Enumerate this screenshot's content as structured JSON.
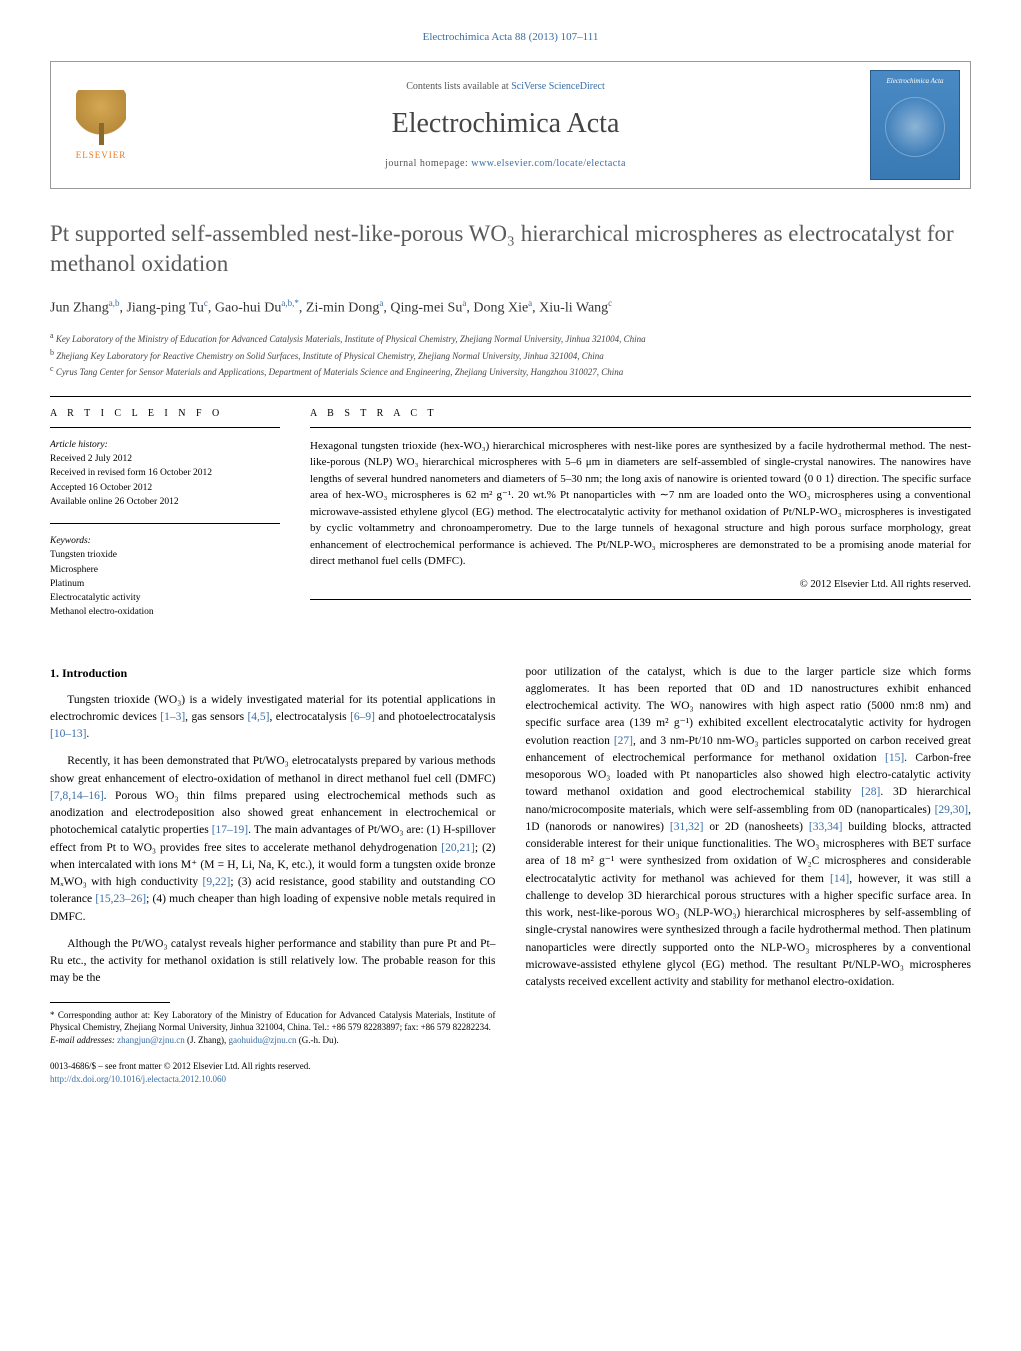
{
  "top_ref": "Electrochimica Acta 88 (2013) 107–111",
  "header": {
    "contents_prefix": "Contents lists available at ",
    "contents_link": "SciVerse ScienceDirect",
    "journal_name": "Electrochimica Acta",
    "homepage_prefix": "journal homepage: ",
    "homepage_url": "www.elsevier.com/locate/electacta",
    "publisher": "ELSEVIER",
    "cover_title": "Electrochimica Acta"
  },
  "title": "Pt supported self-assembled nest-like-porous WO₃ hierarchical microspheres as electrocatalyst for methanol oxidation",
  "authors_html": "Jun Zhang<sup>a,b</sup>, Jiang-ping Tu<sup>c</sup>, Gao-hui Du<sup>a,b,*</sup>, Zi-min Dong<sup>a</sup>, Qing-mei Su<sup>a</sup>, Dong Xie<sup>a</sup>, Xiu-li Wang<sup>c</sup>",
  "affiliations": {
    "a": "Key Laboratory of the Ministry of Education for Advanced Catalysis Materials, Institute of Physical Chemistry, Zhejiang Normal University, Jinhua 321004, China",
    "b": "Zhejiang Key Laboratory for Reactive Chemistry on Solid Surfaces, Institute of Physical Chemistry, Zhejiang Normal University, Jinhua 321004, China",
    "c": "Cyrus Tang Center for Sensor Materials and Applications, Department of Materials Science and Engineering, Zhejiang University, Hangzhou 310027, China"
  },
  "article_info_label": "A R T I C L E   I N F O",
  "abstract_label": "A B S T R A C T",
  "history": {
    "label": "Article history:",
    "received": "Received 2 July 2012",
    "revised": "Received in revised form 16 October 2012",
    "accepted": "Accepted 16 October 2012",
    "online": "Available online 26 October 2012"
  },
  "keywords": {
    "label": "Keywords:",
    "items": [
      "Tungsten trioxide",
      "Microsphere",
      "Platinum",
      "Electrocatalytic activity",
      "Methanol electro-oxidation"
    ]
  },
  "abstract": "Hexagonal tungsten trioxide (hex-WO₃) hierarchical microspheres with nest-like pores are synthesized by a facile hydrothermal method. The nest-like-porous (NLP) WO₃ hierarchical microspheres with 5–6 μm in diameters are self-assembled of single-crystal nanowires. The nanowires have lengths of several hundred nanometers and diameters of 5–30 nm; the long axis of nanowire is oriented toward ⟨0 0 1⟩ direction. The specific surface area of hex-WO₃ microspheres is 62 m² g⁻¹. 20 wt.% Pt nanoparticles with ∼7 nm are loaded onto the WO₃ microspheres using a conventional microwave-assisted ethylene glycol (EG) method. The electrocatalytic activity for methanol oxidation of Pt/NLP-WO₃ microspheres is investigated by cyclic voltammetry and chronoamperometry. Due to the large tunnels of hexagonal structure and high porous surface morphology, great enhancement of electrochemical performance is achieved. The Pt/NLP-WO₃ microspheres are demonstrated to be a promising anode material for direct methanol fuel cells (DMFC).",
  "copyright": "© 2012 Elsevier Ltd. All rights reserved.",
  "intro_heading": "1.  Introduction",
  "col1": {
    "p1_a": "Tungsten trioxide (WO₃) is a widely investigated material for its potential applications in electrochromic devices ",
    "p1_r1": "[1–3]",
    "p1_b": ", gas sensors ",
    "p1_r2": "[4,5]",
    "p1_c": ", electrocatalysis ",
    "p1_r3": "[6–9]",
    "p1_d": " and photoelectrocatalysis ",
    "p1_r4": "[10–13]",
    "p1_e": ".",
    "p2_a": "Recently, it has been demonstrated that Pt/WO₃ eletrocatalysts prepared by various methods show great enhancement of electro-oxidation of methanol in direct methanol fuel cell (DMFC) ",
    "p2_r1": "[7,8,14–16]",
    "p2_b": ". Porous WO₃ thin films prepared using electrochemical methods such as anodization and electrodeposition also showed great enhancement in electrochemical or photochemical catalytic properties ",
    "p2_r2": "[17–19]",
    "p2_c": ". The main advantages of Pt/WO₃ are: (1) H-spillover effect from Pt to WO₃ provides free sites to accelerate methanol dehydrogenation ",
    "p2_r3": "[20,21]",
    "p2_d": "; (2) when intercalated with ions M⁺ (M = H, Li, Na, K, etc.), it would form a tungsten oxide bronze MₓWO₃ with high conductivity ",
    "p2_r4": "[9,22]",
    "p2_e": "; (3) acid resistance, good stability and outstanding CO tolerance ",
    "p2_r5": "[15,23–26]",
    "p2_f": "; (4) much cheaper than high loading of expensive noble metals required in DMFC.",
    "p3": "Although the Pt/WO₃ catalyst reveals higher performance and stability than pure Pt and Pt–Ru etc., the activity for methanol oxidation is still relatively low. The probable reason for this may be the"
  },
  "col2": {
    "p1_a": "poor utilization of the catalyst, which is due to the larger particle size which forms agglomerates. It has been reported that 0D and 1D nanostructures exhibit enhanced electrochemical activity. The WO₃ nanowires with high aspect ratio (5000 nm:8 nm) and specific surface area (139 m² g⁻¹) exhibited excellent electrocatalytic activity for hydrogen evolution reaction ",
    "p1_r1": "[27]",
    "p1_b": ", and 3 nm-Pt/10 nm-WO₃ particles supported on carbon received great enhancement of electrochemical performance for methanol oxidation ",
    "p1_r2": "[15]",
    "p1_c": ". Carbon-free mesoporous WO₃ loaded with Pt nanoparticles also showed high electro-catalytic activity toward methanol oxidation and good electrochemical stability ",
    "p1_r3": "[28]",
    "p1_d": ". 3D hierarchical nano/microcomposite materials, which were self-assembling from 0D (nanoparticales) ",
    "p1_r4": "[29,30]",
    "p1_e": ", 1D (nanorods or nanowires) ",
    "p1_r5": "[31,32]",
    "p1_f": " or 2D (nanosheets) ",
    "p1_r6": "[33,34]",
    "p1_g": " building blocks, attracted considerable interest for their unique functionalities. The WO₃ microspheres with BET surface area of 18 m² g⁻¹ were synthesized from oxidation of W₂C microspheres and considerable electrocatalytic activity for methanol was achieved for them ",
    "p1_r7": "[14]",
    "p1_h": ", however, it was still a challenge to develop 3D hierarchical porous structures with a higher specific surface area. In this work, nest-like-porous WO₃ (NLP-WO₃) hierarchical microspheres by self-assembling of single-crystal nanowires were synthesized through a facile hydrothermal method. Then platinum nanoparticles were directly supported onto the NLP-WO₃ microspheres by a conventional microwave-assisted ethylene glycol (EG) method. The resultant Pt/NLP-WO₃ microspheres catalysts received excellent activity and stability for methanol electro-oxidation."
  },
  "footnote": {
    "corr": "* Corresponding author at: Key Laboratory of the Ministry of Education for Advanced Catalysis Materials, Institute of Physical Chemistry, Zhejiang Normal University, Jinhua 321004, China. Tel.: +86 579 82283897; fax: +86 579 82282234.",
    "email_label": "E-mail addresses: ",
    "email1": "zhangjun@zjnu.cn",
    "email1_who": " (J. Zhang), ",
    "email2": "gaohuidu@zjnu.cn",
    "email2_who": " (G.-h. Du)."
  },
  "bottom": {
    "issn": "0013-4686/$ – see front matter © 2012 Elsevier Ltd. All rights reserved.",
    "doi_url": "http://dx.doi.org/10.1016/j.electacta.2012.10.060"
  },
  "colors": {
    "link": "#3a6ea5",
    "title_gray": "#5a5a5a",
    "elsevier_orange": "#e8791e",
    "cover_blue": "#4a8ac4"
  }
}
